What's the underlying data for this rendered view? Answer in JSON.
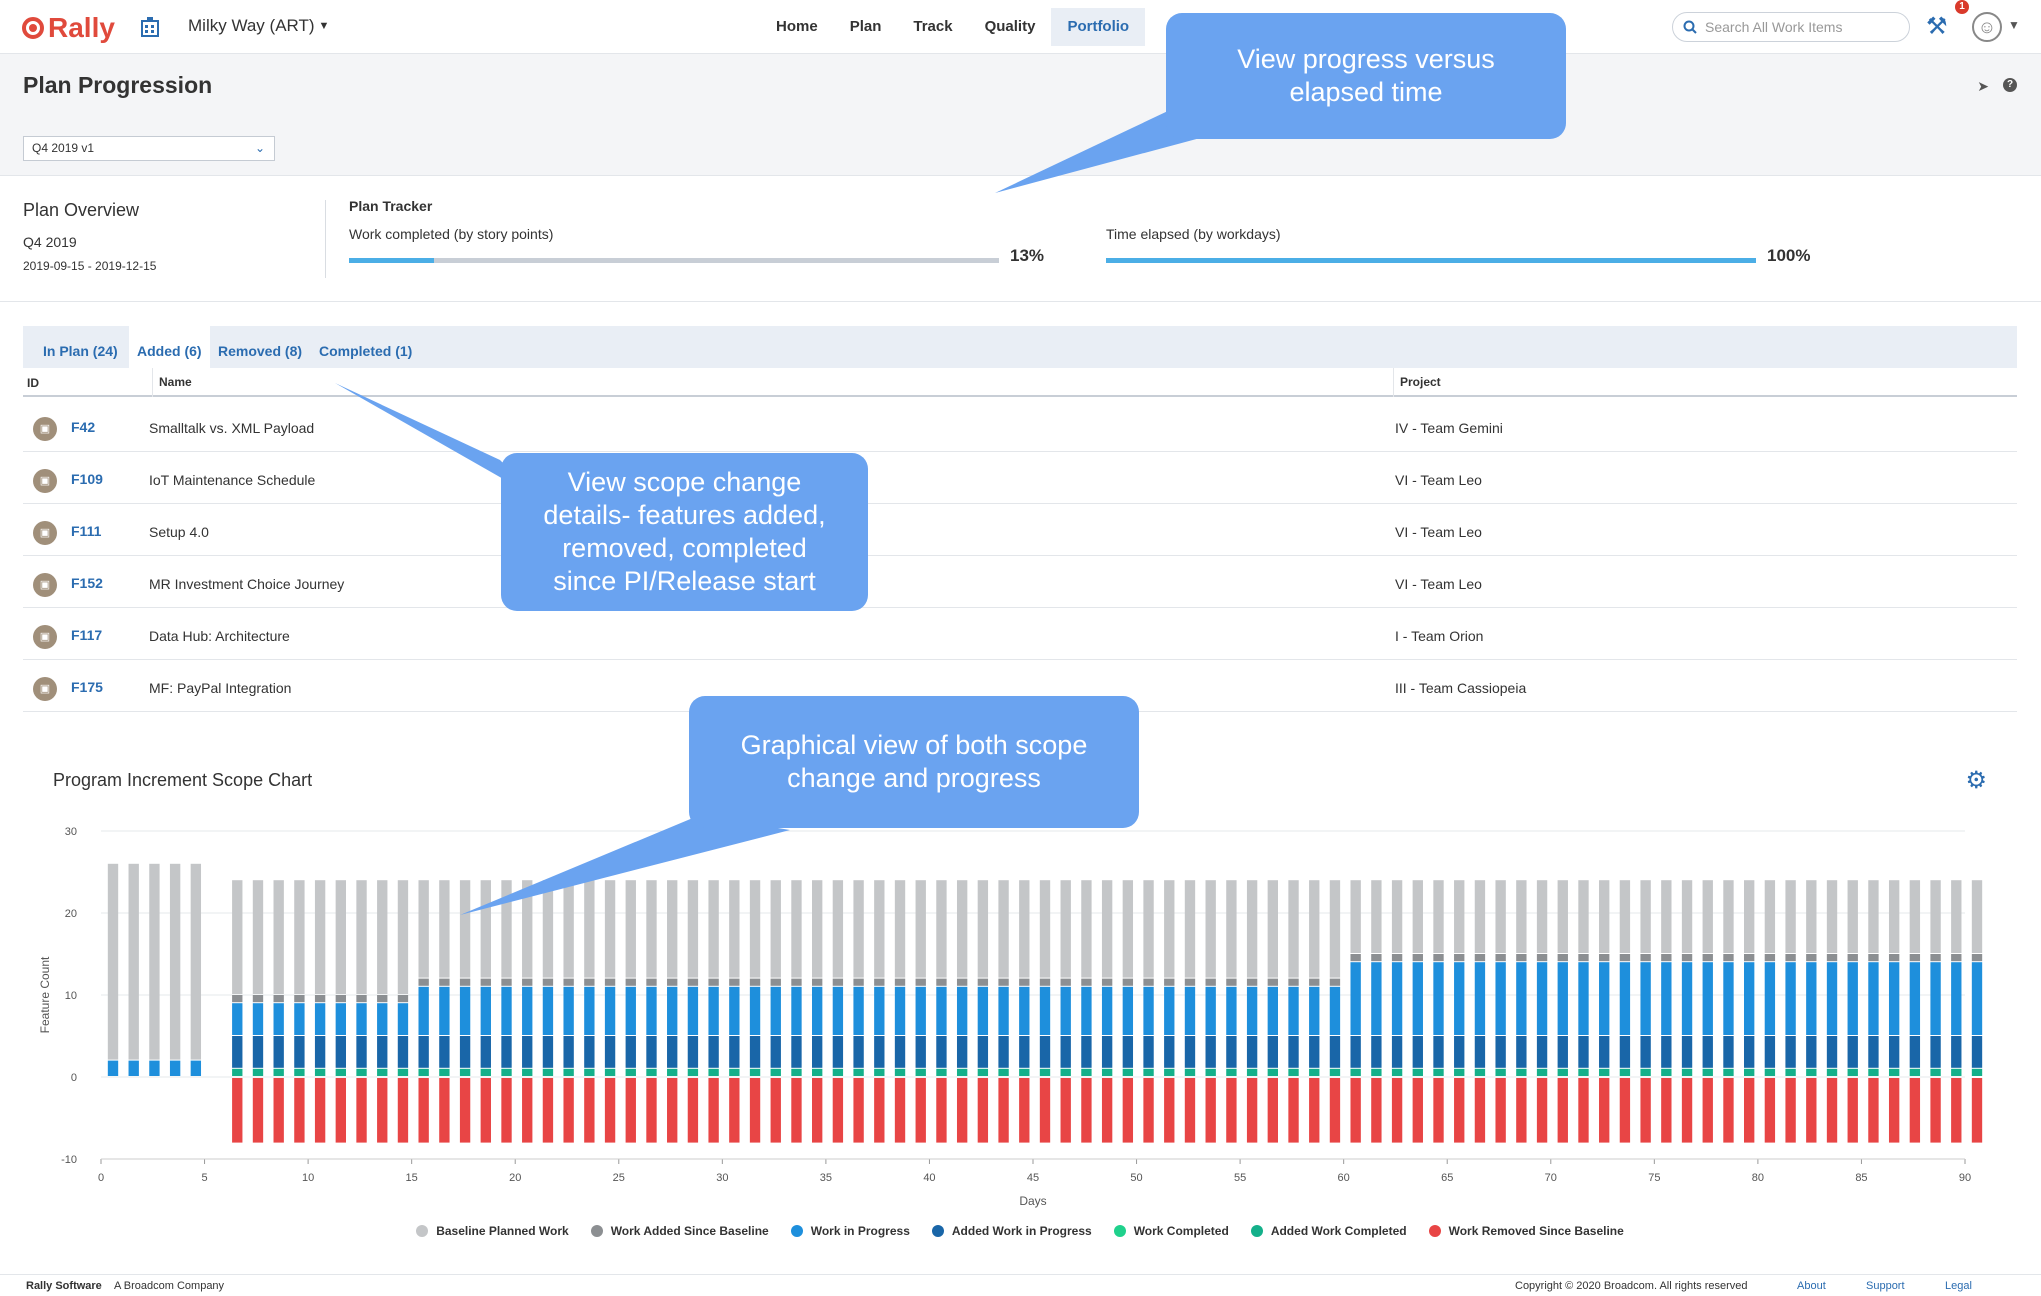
{
  "topbar": {
    "logo": "Rally",
    "workspace": "Milky Way (ART)",
    "nav": [
      "Home",
      "Plan",
      "Track",
      "Quality",
      "Portfolio"
    ],
    "active_nav": "Portfolio",
    "search_placeholder": "Search All Work Items",
    "notification_count": "1"
  },
  "page": {
    "title": "Plan Progression",
    "plan_selected": "Q4 2019 v1"
  },
  "overview": {
    "title": "Plan Overview",
    "quarter": "Q4 2019",
    "dates": "2019-09-15 - 2019-12-15",
    "tracker_title": "Plan Tracker",
    "work_label": "Work completed (by story points)",
    "work_pct": "13%",
    "work_value": 0.13,
    "time_label": "Time elapsed (by workdays)",
    "time_pct": "100%",
    "time_value": 1.0
  },
  "tabs": [
    "In Plan (24)",
    "Added (6)",
    "Removed (8)",
    "Completed (1)"
  ],
  "active_tab": "Added (6)",
  "table": {
    "headers": {
      "id": "ID",
      "name": "Name",
      "project": "Project"
    },
    "rows": [
      {
        "id": "F42",
        "name": "Smalltalk vs. XML Payload",
        "project": "IV - Team Gemini"
      },
      {
        "id": "F109",
        "name": "IoT Maintenance Schedule",
        "project": "VI - Team Leo"
      },
      {
        "id": "F111",
        "name": "Setup 4.0",
        "project": "VI - Team Leo"
      },
      {
        "id": "F152",
        "name": "MR Investment Choice Journey",
        "project": "VI - Team Leo"
      },
      {
        "id": "F117",
        "name": "Data Hub: Architecture",
        "project": "I - Team Orion"
      },
      {
        "id": "F175",
        "name": "MF: PayPal Integration",
        "project": "III - Team Cassiopeia"
      }
    ]
  },
  "chart_data": {
    "type": "bar",
    "title": "Program Increment Scope Chart",
    "xlabel": "Days",
    "ylabel": "Feature Count",
    "xlim": [
      0,
      90
    ],
    "ylim": [
      -10,
      30
    ],
    "xticks": [
      0,
      5,
      10,
      15,
      20,
      25,
      30,
      35,
      40,
      45,
      50,
      55,
      60,
      65,
      70,
      75,
      80,
      85,
      90
    ],
    "yticks": [
      -10,
      0,
      10,
      20,
      30
    ],
    "stacked": true,
    "legend_position": "bottom",
    "series": [
      {
        "name": "Baseline Planned Work",
        "color": "#c4c6c8"
      },
      {
        "name": "Work Added Since Baseline",
        "color": "#8c8f92"
      },
      {
        "name": "Work in Progress",
        "color": "#1e8fdc"
      },
      {
        "name": "Added Work in Progress",
        "color": "#1966a8"
      },
      {
        "name": "Work Completed",
        "color": "#1fd18c"
      },
      {
        "name": "Added Work Completed",
        "color": "#14b08a"
      },
      {
        "name": "Work Removed Since Baseline",
        "color": "#e84545"
      }
    ],
    "phases": [
      {
        "days": "0-4",
        "baseline_planned": 24,
        "work_in_progress": 2,
        "removed": 0
      },
      {
        "days": "6-14",
        "added_work_completed": 1,
        "added_wip": 4,
        "work_in_progress": 4,
        "work_added": 1,
        "baseline_planned": 14,
        "removed": -8
      },
      {
        "days": "15-59",
        "added_work_completed": 1,
        "added_wip": 4,
        "work_in_progress": 6,
        "work_added": 1,
        "baseline_planned": 12,
        "removed": -8
      },
      {
        "days": "60-90",
        "added_work_completed": 1,
        "added_wip": 4,
        "work_in_progress": 9,
        "work_added": 1,
        "baseline_planned": 9,
        "removed": -8
      }
    ]
  },
  "callouts": {
    "progress": "View progress versus elapsed time",
    "scope": "View scope change details- features added, removed, completed since PI/Release start",
    "graph": "Graphical view of both scope change and progress"
  },
  "footer": {
    "company": "Rally Software",
    "broadcom": "A Broadcom Company",
    "copyright": "Copyright © 2020 Broadcom. All rights reserved",
    "links": [
      "About",
      "Support",
      "Legal"
    ]
  }
}
